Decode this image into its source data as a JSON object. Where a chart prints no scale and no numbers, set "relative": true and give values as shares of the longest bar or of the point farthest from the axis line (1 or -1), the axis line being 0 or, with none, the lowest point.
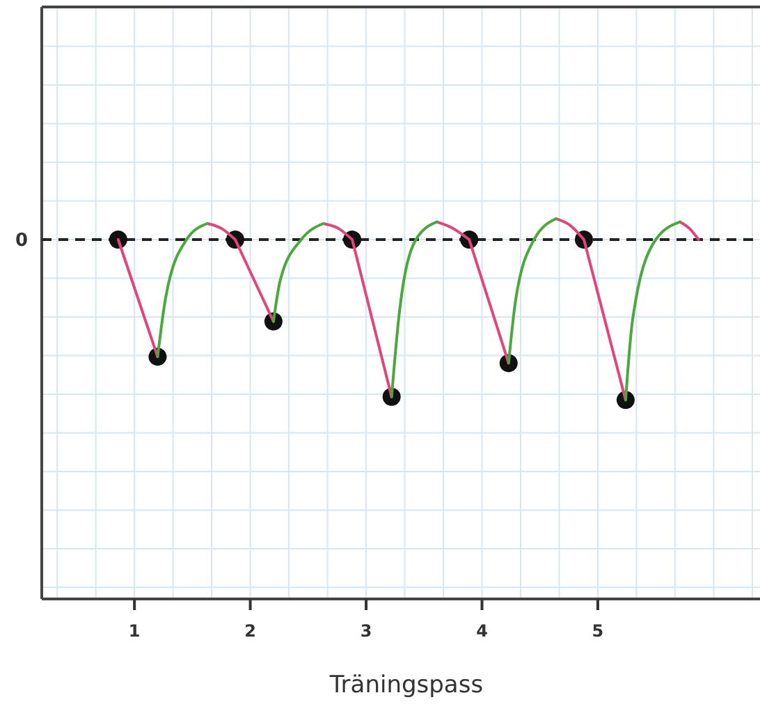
{
  "chart_data": {
    "type": "line",
    "relative": true,
    "xlabel": "Träningspass",
    "xlim": [
      0.2,
      6.4
    ],
    "xticks": [
      1,
      2,
      3,
      4,
      5
    ],
    "grid": true,
    "tick_labels": "x",
    "ref_lines": [
      {
        "axis": "y",
        "value": 0,
        "label": "0",
        "color": "#222222",
        "line_style": "dashed"
      }
    ],
    "series": [
      {
        "color": "#e0457b",
        "marker": "none",
        "x": [
          0.86,
          1.2,
          null,
          1.63,
          1.75,
          1.87,
          null,
          1.87,
          2.2,
          null,
          2.63,
          2.76,
          2.88,
          null,
          2.88,
          3.22,
          null,
          3.61,
          3.75,
          3.89,
          null,
          3.89,
          4.23,
          null,
          4.64,
          4.76,
          4.88,
          null,
          4.88,
          5.24
        ],
        "values": [
          0,
          -0.73,
          null,
          0.1,
          0.07,
          0,
          null,
          0,
          -0.51,
          null,
          0.1,
          0.07,
          0,
          null,
          0,
          -0.98,
          null,
          0.11,
          0.07,
          0,
          null,
          0,
          -0.77,
          null,
          0.13,
          0.09,
          0,
          null,
          0,
          -1
        ]
      },
      {
        "color": "#e0457b",
        "marker": "none",
        "x": [
          5.71,
          5.79,
          5.87
        ],
        "values": [
          0.11,
          0.07,
          0
        ]
      },
      {
        "color": "#4aa83c",
        "marker": "none",
        "x": [
          1.2,
          1.27,
          1.45,
          1.63,
          null,
          2.2,
          2.26,
          2.44,
          2.63,
          null,
          3.22,
          3.28,
          3.43,
          3.61,
          null,
          4.23,
          4.29,
          4.45,
          4.64,
          null,
          5.24,
          5.3,
          5.5,
          5.71
        ],
        "values": [
          -0.73,
          -0.36,
          0,
          0.1,
          null,
          -0.51,
          -0.25,
          0,
          0.1,
          null,
          -0.98,
          -0.5,
          0,
          0.11,
          null,
          -0.77,
          -0.38,
          0,
          0.13,
          null,
          -1,
          -0.5,
          0,
          0.11
        ]
      },
      {
        "type": "scatter",
        "color": "#111111",
        "marker": "circle",
        "x": [
          0.86,
          1.2,
          1.87,
          2.2,
          2.88,
          3.22,
          3.89,
          4.23,
          4.88,
          5.24
        ],
        "values": [
          0,
          -0.73,
          0,
          -0.51,
          0,
          -0.98,
          0,
          -0.77,
          0,
          -1
        ]
      }
    ]
  }
}
